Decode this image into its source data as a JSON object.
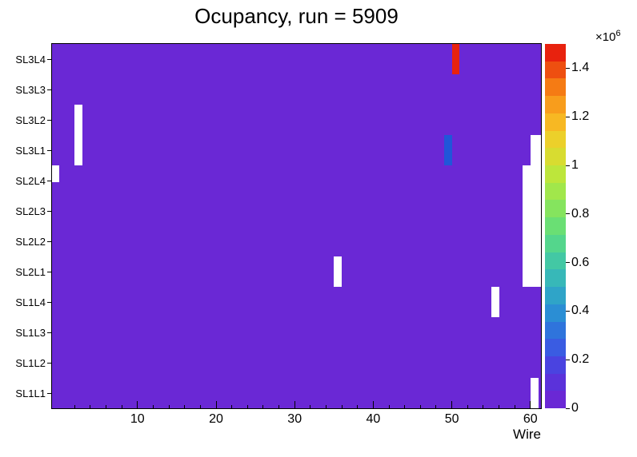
{
  "chart_data": {
    "type": "heatmap",
    "title": "Ocupancy, run = 5909",
    "xlabel": "Wire",
    "x_ticks": [
      10,
      20,
      30,
      40,
      50,
      60
    ],
    "x_range_wires": [
      1,
      62
    ],
    "rows_top_to_bottom": [
      "SL3L4",
      "SL3L3",
      "SL3L2",
      "SL3L1",
      "SL2L4",
      "SL2L3",
      "SL2L2",
      "SL2L1",
      "SL1L4",
      "SL1L3",
      "SL1L2",
      "SL1L1"
    ],
    "base_color": "#6a28d5",
    "baseline_value_estimate": 50000,
    "bins": {
      "hot": [
        {
          "row": "SL3L4",
          "wire": 51,
          "value_estimate": 1500000,
          "color": "#e8220e"
        }
      ],
      "cold": [
        {
          "row": "SL3L1",
          "wire": 50,
          "value_estimate": 280000,
          "color": "#2156d9"
        }
      ],
      "empty": [
        {
          "row": "SL3L2",
          "wire_from": 3,
          "wire_to": 3
        },
        {
          "row": "SL3L1",
          "wire_from": 3,
          "wire_to": 3
        },
        {
          "row": "SL2L4",
          "wire_from": 0,
          "wire_to": 0,
          "height_frac": 0.55,
          "valign": "top"
        },
        {
          "row": "SL3L1",
          "wire_from": 61,
          "wire_to": 62
        },
        {
          "row": "SL2L4",
          "wire_from": 60,
          "wire_to": 62
        },
        {
          "row": "SL2L3",
          "wire_from": 60,
          "wire_to": 62
        },
        {
          "row": "SL2L2",
          "wire_from": 60,
          "wire_to": 62
        },
        {
          "row": "SL2L1",
          "wire_from": 60,
          "wire_to": 62
        },
        {
          "row": "SL2L1",
          "wire_from": 36,
          "wire_to": 36
        },
        {
          "row": "SL1L4",
          "wire_from": 56,
          "wire_to": 56
        },
        {
          "row": "SL1L1",
          "wire_from": 61,
          "wire_to": 61
        }
      ]
    },
    "colorbar": {
      "max": 1.5,
      "exponent_prefix": "×10",
      "exponent": "6",
      "tick_labels": [
        "0",
        "0.2",
        "0.4",
        "0.6",
        "0.8",
        "1",
        "1.2",
        "1.4"
      ],
      "tick_values": [
        0,
        0.2,
        0.4,
        0.6,
        0.8,
        1,
        1.2,
        1.4
      ],
      "colors_top_to_bottom": [
        "#e8220e",
        "#ee4f10",
        "#f57b14",
        "#f89d1c",
        "#f7b823",
        "#ecd02a",
        "#d8dc30",
        "#bde63b",
        "#a1e74b",
        "#85e45e",
        "#6adf74",
        "#54d68c",
        "#43c8a4",
        "#37b8b8",
        "#2fa4c8",
        "#2b8ed4",
        "#2f74dc",
        "#3a5ce2",
        "#4a43e0",
        "#5b32da",
        "#6a28d5"
      ]
    }
  }
}
